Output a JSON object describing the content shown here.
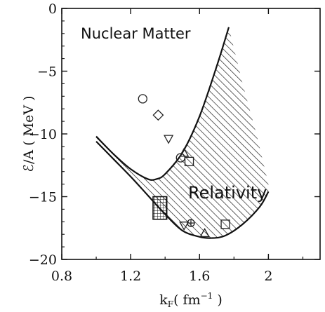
{
  "chart_data": {
    "type": "scatter",
    "xlabel_main": "k",
    "xlabel_sub": "F",
    "xlabel_unit_pre": "( fm",
    "xlabel_unit_sup": "−1",
    "xlabel_unit_post": " )",
    "ylabel": "ℰ/A  ( MeV )",
    "xlim": [
      0.8,
      2.3
    ],
    "ylim": [
      -20,
      0
    ],
    "xticks": [
      {
        "v": 0.8,
        "label": "0.8"
      },
      {
        "v": 1.2,
        "label": "1.2"
      },
      {
        "v": 1.6,
        "label": "1.6"
      },
      {
        "v": 2.0,
        "label": "2"
      }
    ],
    "yticks": [
      {
        "v": 0,
        "label": "0"
      },
      {
        "v": -5,
        "label": "−5"
      },
      {
        "v": -10,
        "label": "−10"
      },
      {
        "v": -15,
        "label": "−15"
      },
      {
        "v": -20,
        "label": "−20"
      }
    ],
    "annotations": {
      "title_box": "Nuclear Matter",
      "band_label": "Relativity"
    },
    "band_upper": [
      [
        1.0,
        -10.2
      ],
      [
        1.1,
        -11.6
      ],
      [
        1.2,
        -12.8
      ],
      [
        1.3,
        -13.6
      ],
      [
        1.35,
        -13.6
      ],
      [
        1.4,
        -13.2
      ],
      [
        1.5,
        -11.5
      ],
      [
        1.6,
        -8.6
      ],
      [
        1.7,
        -4.6
      ],
      [
        1.77,
        -1.5
      ]
    ],
    "band_lower": [
      [
        1.0,
        -10.6
      ],
      [
        1.1,
        -12.0
      ],
      [
        1.2,
        -13.4
      ],
      [
        1.3,
        -14.9
      ],
      [
        1.4,
        -16.4
      ],
      [
        1.5,
        -17.7
      ],
      [
        1.6,
        -18.2
      ],
      [
        1.67,
        -18.3
      ],
      [
        1.75,
        -18.1
      ],
      [
        1.85,
        -17.2
      ],
      [
        1.95,
        -15.8
      ],
      [
        2.0,
        -14.6
      ]
    ],
    "band_fill_right": [
      [
        1.77,
        -1.5
      ],
      [
        1.85,
        -6.0
      ],
      [
        1.93,
        -10.0
      ],
      [
        2.0,
        -14.0
      ],
      [
        2.0,
        -14.6
      ]
    ],
    "box": {
      "x0": 1.33,
      "x1": 1.41,
      "y0": -16.8,
      "y1": -15.0
    },
    "points": [
      {
        "marker": "circle",
        "x": 1.27,
        "y": -7.2
      },
      {
        "marker": "diamond",
        "x": 1.36,
        "y": -8.5
      },
      {
        "marker": "triangle-down",
        "x": 1.42,
        "y": -10.4
      },
      {
        "marker": "triangle-up",
        "x": 1.51,
        "y": -11.5
      },
      {
        "marker": "circle",
        "x": 1.49,
        "y": -11.9
      },
      {
        "marker": "square",
        "x": 1.54,
        "y": -12.2
      },
      {
        "marker": "triangle-down",
        "x": 1.51,
        "y": -17.3
      },
      {
        "marker": "circle-cross",
        "x": 1.55,
        "y": -17.1
      },
      {
        "marker": "triangle-up",
        "x": 1.63,
        "y": -17.9
      },
      {
        "marker": "square",
        "x": 1.75,
        "y": -17.2
      }
    ]
  }
}
